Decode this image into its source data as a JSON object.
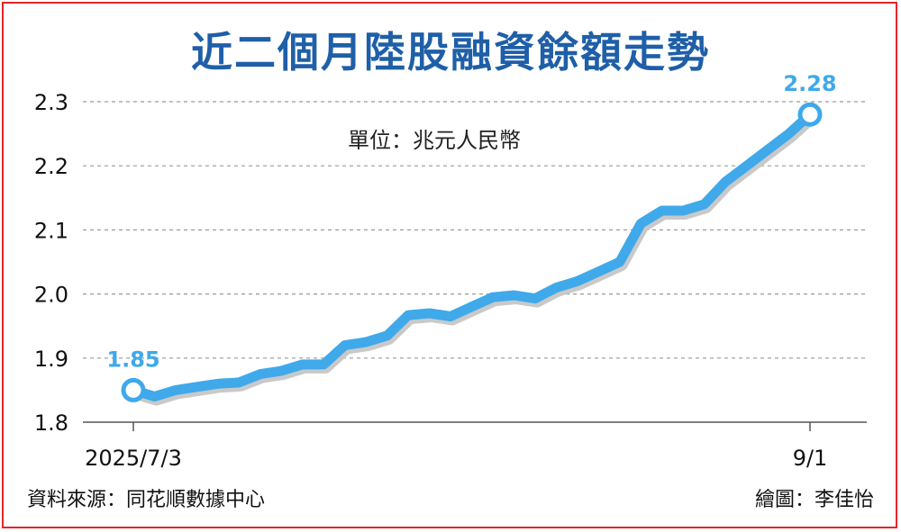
{
  "chart_data": {
    "type": "line",
    "title": "近二個月陸股融資餘額走勢",
    "subtitle": "單位：兆元人民幣",
    "ylim": [
      1.8,
      2.3
    ],
    "y_ticks": [
      "1.8",
      "1.9",
      "2.0",
      "2.1",
      "2.2",
      "2.3"
    ],
    "x_tick_labels": [
      "2025/7/3",
      "9/1"
    ],
    "grid": true,
    "line_color": "#3fa9ea",
    "series": [
      {
        "values": [
          1.85,
          1.84,
          1.85,
          1.855,
          1.86,
          1.862,
          1.875,
          1.88,
          1.89,
          1.89,
          1.92,
          1.925,
          1.935,
          1.967,
          1.97,
          1.965,
          1.98,
          1.995,
          1.998,
          1.993,
          2.01,
          2.02,
          2.035,
          2.05,
          2.11,
          2.13,
          2.13,
          2.14,
          2.175,
          2.2,
          2.225,
          2.25,
          2.28
        ]
      }
    ],
    "annotations": [
      {
        "label": "1.85",
        "point": "first"
      },
      {
        "label": "2.28",
        "point": "last"
      }
    ]
  },
  "footer": {
    "source": "資料來源：同花順數據中心",
    "credit": "繪圖：李佳怡"
  }
}
